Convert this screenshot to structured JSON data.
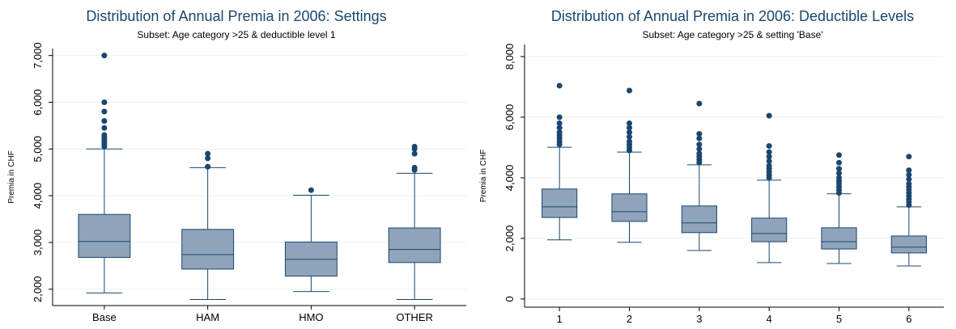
{
  "chart_data": [
    {
      "type": "box",
      "title": "Distribution of Annual Premia in 2006: Settings",
      "subtitle": "Subset: Age category >25 & deductible level 1",
      "y_label": "Premia in CHF",
      "fill": "#8fa3ba",
      "line_color": "#1a476f",
      "grid": true,
      "ylim": [
        1650,
        7150
      ],
      "yticks": [
        {
          "value": 2000,
          "label": "2,000"
        },
        {
          "value": 3000,
          "label": "3,000"
        },
        {
          "value": 4000,
          "label": "4,000"
        },
        {
          "value": 5000,
          "label": "5,000"
        },
        {
          "value": 6000,
          "label": "6,000"
        },
        {
          "value": 7000,
          "label": "7,000"
        }
      ],
      "categories": [
        "Base",
        "HAM",
        "HMO",
        "OTHER"
      ],
      "boxes": [
        {
          "whislo": 1920,
          "q1": 2680,
          "med": 3020,
          "q3": 3600,
          "whishi": 5000,
          "fliers": [
            5050,
            5100,
            5150,
            5200,
            5250,
            5300,
            5450,
            5600,
            5800,
            6000,
            7000
          ]
        },
        {
          "whislo": 1780,
          "q1": 2430,
          "med": 2740,
          "q3": 3280,
          "whishi": 4600,
          "fliers": [
            4620,
            4800,
            4900
          ]
        },
        {
          "whislo": 1950,
          "q1": 2280,
          "med": 2640,
          "q3": 3010,
          "whishi": 4010,
          "fliers": [
            4120
          ]
        },
        {
          "whislo": 1780,
          "q1": 2570,
          "med": 2850,
          "q3": 3310,
          "whishi": 4480,
          "fliers": [
            4550,
            4600,
            4900,
            5000,
            5050
          ]
        }
      ]
    },
    {
      "type": "box",
      "title": "Distribution of Annual Premia in 2006: Deductible Levels",
      "subtitle": "Subset: Age category >25 & setting 'Base'",
      "y_label": "Premia in CHF",
      "fill": "#8fa3ba",
      "line_color": "#1a476f",
      "grid": true,
      "ylim": [
        -270,
        8400
      ],
      "yticks": [
        0,
        {
          "value": 2000,
          "label": "2,000"
        },
        {
          "value": 4000,
          "label": "4,000"
        },
        {
          "value": 6000,
          "label": "6,000"
        },
        {
          "value": 8000,
          "label": "8,000"
        }
      ],
      "categories": [
        "1",
        "2",
        "3",
        "4",
        "5",
        "6"
      ],
      "boxes": [
        {
          "whislo": 1950,
          "q1": 2690,
          "med": 3040,
          "q3": 3630,
          "whishi": 5010,
          "fliers": [
            5100,
            5200,
            5300,
            5400,
            5500,
            5650,
            5800,
            6000,
            7040
          ]
        },
        {
          "whislo": 1870,
          "q1": 2560,
          "med": 2880,
          "q3": 3470,
          "whishi": 4850,
          "fliers": [
            4900,
            5000,
            5100,
            5200,
            5350,
            5500,
            5650,
            5800,
            6880
          ]
        },
        {
          "whislo": 1600,
          "q1": 2190,
          "med": 2510,
          "q3": 3070,
          "whishi": 4430,
          "fliers": [
            4500,
            4600,
            4700,
            4800,
            4950,
            5100,
            5300,
            5450,
            6450
          ]
        },
        {
          "whislo": 1200,
          "q1": 1890,
          "med": 2160,
          "q3": 2670,
          "whishi": 3920,
          "fliers": [
            4000,
            4100,
            4200,
            4300,
            4400,
            4550,
            4700,
            4850,
            5050,
            6050
          ]
        },
        {
          "whislo": 1170,
          "q1": 1650,
          "med": 1890,
          "q3": 2350,
          "whishi": 3470,
          "fliers": [
            3500,
            3600,
            3700,
            3800,
            3900,
            4000,
            4150,
            4300,
            4500,
            4750
          ]
        },
        {
          "whislo": 1090,
          "q1": 1520,
          "med": 1710,
          "q3": 2080,
          "whishi": 3040,
          "fliers": [
            3100,
            3200,
            3300,
            3400,
            3500,
            3600,
            3700,
            3800,
            3950,
            4100,
            4250,
            4700
          ]
        }
      ]
    }
  ]
}
